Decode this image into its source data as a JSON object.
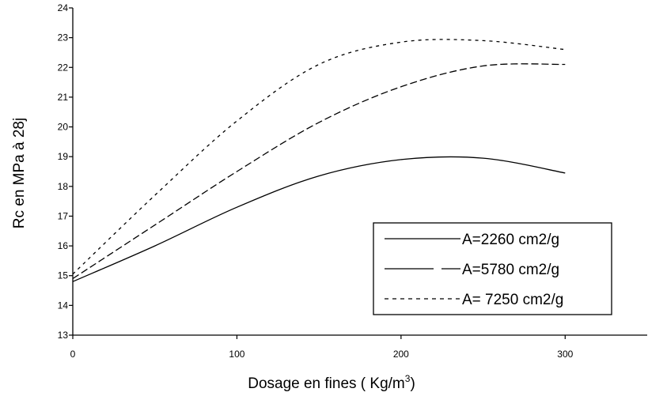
{
  "chart_data": {
    "type": "line",
    "title": "",
    "xlabel": "Dosage en fines ( Kg/m",
    "xlabel_superscript": "3",
    "xlabel_suffix": ")",
    "ylabel": "Rc en MPa à 28j",
    "xlim": [
      0,
      350
    ],
    "ylim": [
      13,
      24
    ],
    "x_ticks": [
      "0",
      "100",
      "200",
      "300"
    ],
    "x_tick_values": [
      0,
      100,
      200,
      300
    ],
    "y_ticks": [
      "13",
      "14",
      "15",
      "16",
      "17",
      "18",
      "19",
      "20",
      "21",
      "22",
      "23",
      "24"
    ],
    "y_tick_values": [
      13,
      14,
      15,
      16,
      17,
      18,
      19,
      20,
      21,
      22,
      23,
      24
    ],
    "grid": false,
    "legend_position": "bottom-right",
    "x": [
      0,
      50,
      100,
      150,
      200,
      250,
      300
    ],
    "series": [
      {
        "name": "A=2260 cm2/g",
        "style": "solid",
        "values": [
          14.8,
          16.0,
          17.3,
          18.35,
          18.9,
          18.95,
          18.45
        ]
      },
      {
        "name": "A=5780 cm2/g",
        "style": "long-dash",
        "values": [
          14.9,
          16.7,
          18.5,
          20.15,
          21.35,
          22.05,
          22.1
        ]
      },
      {
        "name": "A= 7250 cm2/g",
        "style": "short-dash",
        "values": [
          15.05,
          17.7,
          20.2,
          22.1,
          22.85,
          22.9,
          22.6
        ]
      }
    ]
  }
}
